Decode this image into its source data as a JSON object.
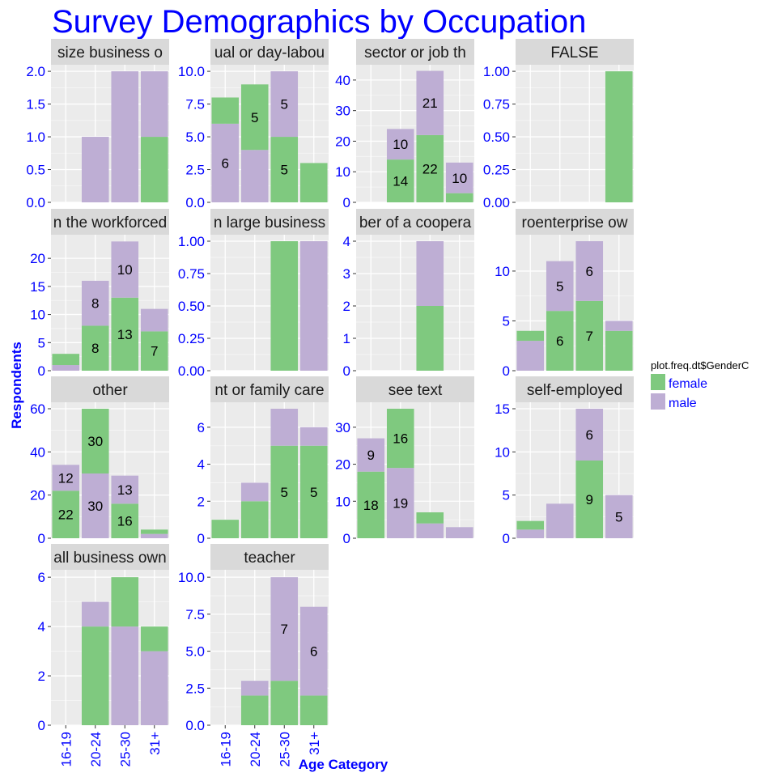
{
  "chart_data": {
    "type": "bar",
    "stacked": true,
    "faceted": true,
    "title": "Survey Demographics by Occupation",
    "xlabel": "Age Category",
    "ylabel": "Respondents",
    "categories": [
      "16-19",
      "20-24",
      "25-30",
      "31+"
    ],
    "legend": {
      "title": "plot.freq.dt$GenderC",
      "position": "right",
      "entries": [
        {
          "name": "female",
          "color": "#7fc97f"
        },
        {
          "name": "male",
          "color": "#beaed4"
        }
      ]
    },
    "grid": true,
    "colors": {
      "title": "#0000ff",
      "axis_text": "#0000ff",
      "panel_bg": "#ebebeb",
      "strip_bg": "#d9d9d9",
      "label_text": "#000000"
    },
    "panels": [
      {
        "strip": "size business o",
        "ylim": [
          0,
          2.1
        ],
        "yticks": [
          "0.0",
          "0.5",
          "1.0",
          "1.5",
          "2.0"
        ],
        "tickvals": [
          0,
          0.5,
          1,
          1.5,
          2
        ],
        "bars": [
          {
            "category": "16-19",
            "segments": []
          },
          {
            "category": "20-24",
            "segments": [
              {
                "gender": "male",
                "value": 1
              }
            ]
          },
          {
            "category": "25-30",
            "segments": [
              {
                "gender": "male",
                "value": 2
              }
            ]
          },
          {
            "category": "31+",
            "segments": [
              {
                "gender": "female",
                "value": 1
              },
              {
                "gender": "male",
                "value": 1
              }
            ]
          }
        ]
      },
      {
        "strip": "ual or day-labou",
        "ylim": [
          0,
          10.5
        ],
        "yticks": [
          "0.0",
          "2.5",
          "5.0",
          "7.5",
          "10.0"
        ],
        "tickvals": [
          0,
          2.5,
          5,
          7.5,
          10
        ],
        "bars": [
          {
            "category": "16-19",
            "segments": [
              {
                "gender": "male",
                "value": 6,
                "label": "6"
              },
              {
                "gender": "female",
                "value": 2
              }
            ]
          },
          {
            "category": "20-24",
            "segments": [
              {
                "gender": "male",
                "value": 4
              },
              {
                "gender": "female",
                "value": 5,
                "label": "5"
              }
            ]
          },
          {
            "category": "25-30",
            "segments": [
              {
                "gender": "female",
                "value": 5,
                "label": "5"
              },
              {
                "gender": "male",
                "value": 5,
                "label": "5"
              }
            ]
          },
          {
            "category": "31+",
            "segments": [
              {
                "gender": "female",
                "value": 3
              }
            ]
          }
        ]
      },
      {
        "strip": "sector or job th",
        "ylim": [
          0,
          45
        ],
        "yticks": [
          "0",
          "10",
          "20",
          "30",
          "40"
        ],
        "tickvals": [
          0,
          10,
          20,
          30,
          40
        ],
        "bars": [
          {
            "category": "16-19",
            "segments": []
          },
          {
            "category": "20-24",
            "segments": [
              {
                "gender": "female",
                "value": 14,
                "label": "14"
              },
              {
                "gender": "male",
                "value": 10,
                "label": "10"
              }
            ]
          },
          {
            "category": "25-30",
            "segments": [
              {
                "gender": "female",
                "value": 22,
                "label": "22"
              },
              {
                "gender": "male",
                "value": 21,
                "label": "21"
              }
            ]
          },
          {
            "category": "31+",
            "segments": [
              {
                "gender": "female",
                "value": 3
              },
              {
                "gender": "male",
                "value": 10,
                "label": "10"
              }
            ]
          }
        ]
      },
      {
        "strip": "FALSE",
        "ylim": [
          0,
          1.05
        ],
        "yticks": [
          "0.00",
          "0.25",
          "0.50",
          "0.75",
          "1.00"
        ],
        "tickvals": [
          0,
          0.25,
          0.5,
          0.75,
          1
        ],
        "bars": [
          {
            "category": "16-19",
            "segments": []
          },
          {
            "category": "20-24",
            "segments": []
          },
          {
            "category": "25-30",
            "segments": []
          },
          {
            "category": "31+",
            "segments": [
              {
                "gender": "female",
                "value": 1
              }
            ]
          }
        ]
      },
      {
        "strip": "n the workforced",
        "ylim": [
          0,
          24.2
        ],
        "yticks": [
          "0",
          "5",
          "10",
          "15",
          "20"
        ],
        "tickvals": [
          0,
          5,
          10,
          15,
          20
        ],
        "bars": [
          {
            "category": "16-19",
            "segments": [
              {
                "gender": "male",
                "value": 1
              },
              {
                "gender": "female",
                "value": 2
              }
            ]
          },
          {
            "category": "20-24",
            "segments": [
              {
                "gender": "female",
                "value": 8,
                "label": "8"
              },
              {
                "gender": "male",
                "value": 8,
                "label": "8"
              }
            ]
          },
          {
            "category": "25-30",
            "segments": [
              {
                "gender": "female",
                "value": 13,
                "label": "13"
              },
              {
                "gender": "male",
                "value": 10,
                "label": "10"
              }
            ]
          },
          {
            "category": "31+",
            "segments": [
              {
                "gender": "female",
                "value": 7,
                "label": "7"
              },
              {
                "gender": "male",
                "value": 4
              }
            ]
          }
        ]
      },
      {
        "strip": "n large business",
        "ylim": [
          0,
          1.05
        ],
        "yticks": [
          "0.00",
          "0.25",
          "0.50",
          "0.75",
          "1.00"
        ],
        "tickvals": [
          0,
          0.25,
          0.5,
          0.75,
          1
        ],
        "bars": [
          {
            "category": "16-19",
            "segments": []
          },
          {
            "category": "20-24",
            "segments": []
          },
          {
            "category": "25-30",
            "segments": [
              {
                "gender": "female",
                "value": 1
              }
            ]
          },
          {
            "category": "31+",
            "segments": [
              {
                "gender": "male",
                "value": 1
              }
            ]
          }
        ]
      },
      {
        "strip": "ber of a coopera",
        "ylim": [
          0,
          4.2
        ],
        "yticks": [
          "0",
          "1",
          "2",
          "3",
          "4"
        ],
        "tickvals": [
          0,
          1,
          2,
          3,
          4
        ],
        "bars": [
          {
            "category": "16-19",
            "segments": []
          },
          {
            "category": "20-24",
            "segments": []
          },
          {
            "category": "25-30",
            "segments": [
              {
                "gender": "female",
                "value": 2
              },
              {
                "gender": "male",
                "value": 2
              }
            ]
          },
          {
            "category": "31+",
            "segments": []
          }
        ]
      },
      {
        "strip": "roenterprise ow",
        "ylim": [
          0,
          13.65
        ],
        "yticks": [
          "0",
          "5",
          "10"
        ],
        "tickvals": [
          0,
          5,
          10
        ],
        "bars": [
          {
            "category": "16-19",
            "segments": [
              {
                "gender": "male",
                "value": 3
              },
              {
                "gender": "female",
                "value": 1
              }
            ]
          },
          {
            "category": "20-24",
            "segments": [
              {
                "gender": "female",
                "value": 6,
                "label": "6"
              },
              {
                "gender": "male",
                "value": 5,
                "label": "5"
              }
            ]
          },
          {
            "category": "25-30",
            "segments": [
              {
                "gender": "female",
                "value": 7,
                "label": "7"
              },
              {
                "gender": "male",
                "value": 6,
                "label": "6"
              }
            ]
          },
          {
            "category": "31+",
            "segments": [
              {
                "gender": "female",
                "value": 4
              },
              {
                "gender": "male",
                "value": 1
              }
            ]
          }
        ]
      },
      {
        "strip": "other",
        "ylim": [
          0,
          63
        ],
        "yticks": [
          "0",
          "20",
          "40",
          "60"
        ],
        "tickvals": [
          0,
          20,
          40,
          60
        ],
        "bars": [
          {
            "category": "16-19",
            "segments": [
              {
                "gender": "female",
                "value": 22,
                "label": "22"
              },
              {
                "gender": "male",
                "value": 12,
                "label": "12"
              }
            ]
          },
          {
            "category": "20-24",
            "segments": [
              {
                "gender": "male",
                "value": 30,
                "label": "30"
              },
              {
                "gender": "female",
                "value": 30,
                "label": "30"
              }
            ]
          },
          {
            "category": "25-30",
            "segments": [
              {
                "gender": "female",
                "value": 16,
                "label": "16"
              },
              {
                "gender": "male",
                "value": 13,
                "label": "13"
              }
            ]
          },
          {
            "category": "31+",
            "segments": [
              {
                "gender": "male",
                "value": 2
              },
              {
                "gender": "female",
                "value": 2
              }
            ]
          }
        ]
      },
      {
        "strip": "nt or family care",
        "ylim": [
          0,
          7.35
        ],
        "yticks": [
          "0",
          "2",
          "4",
          "6"
        ],
        "tickvals": [
          0,
          2,
          4,
          6
        ],
        "bars": [
          {
            "category": "16-19",
            "segments": [
              {
                "gender": "female",
                "value": 1
              }
            ]
          },
          {
            "category": "20-24",
            "segments": [
              {
                "gender": "female",
                "value": 2
              },
              {
                "gender": "male",
                "value": 1
              }
            ]
          },
          {
            "category": "25-30",
            "segments": [
              {
                "gender": "female",
                "value": 5,
                "label": "5"
              },
              {
                "gender": "male",
                "value": 2
              }
            ]
          },
          {
            "category": "31+",
            "segments": [
              {
                "gender": "female",
                "value": 5,
                "label": "5"
              },
              {
                "gender": "male",
                "value": 1
              }
            ]
          }
        ]
      },
      {
        "strip": "see text",
        "ylim": [
          0,
          36.75
        ],
        "yticks": [
          "0",
          "10",
          "20",
          "30"
        ],
        "tickvals": [
          0,
          10,
          20,
          30
        ],
        "bars": [
          {
            "category": "16-19",
            "segments": [
              {
                "gender": "female",
                "value": 18,
                "label": "18"
              },
              {
                "gender": "male",
                "value": 9,
                "label": "9"
              }
            ]
          },
          {
            "category": "20-24",
            "segments": [
              {
                "gender": "male",
                "value": 19,
                "label": "19"
              },
              {
                "gender": "female",
                "value": 16,
                "label": "16"
              }
            ]
          },
          {
            "category": "25-30",
            "segments": [
              {
                "gender": "male",
                "value": 4
              },
              {
                "gender": "female",
                "value": 3
              }
            ]
          },
          {
            "category": "31+",
            "segments": [
              {
                "gender": "male",
                "value": 3
              }
            ]
          }
        ]
      },
      {
        "strip": "self-employed",
        "ylim": [
          0,
          15.75
        ],
        "yticks": [
          "0",
          "5",
          "10",
          "15"
        ],
        "tickvals": [
          0,
          5,
          10,
          15
        ],
        "bars": [
          {
            "category": "16-19",
            "segments": [
              {
                "gender": "male",
                "value": 1
              },
              {
                "gender": "female",
                "value": 1
              }
            ]
          },
          {
            "category": "20-24",
            "segments": [
              {
                "gender": "male",
                "value": 4
              }
            ]
          },
          {
            "category": "25-30",
            "segments": [
              {
                "gender": "female",
                "value": 9,
                "label": "9"
              },
              {
                "gender": "male",
                "value": 6,
                "label": "6"
              }
            ]
          },
          {
            "category": "31+",
            "segments": [
              {
                "gender": "male",
                "value": 5,
                "label": "5"
              }
            ]
          }
        ]
      },
      {
        "strip": "all business own",
        "ylim": [
          0,
          6.3
        ],
        "yticks": [
          "0",
          "2",
          "4",
          "6"
        ],
        "tickvals": [
          0,
          2,
          4,
          6
        ],
        "bars": [
          {
            "category": "16-19",
            "segments": []
          },
          {
            "category": "20-24",
            "segments": [
              {
                "gender": "female",
                "value": 4
              },
              {
                "gender": "male",
                "value": 1
              }
            ]
          },
          {
            "category": "25-30",
            "segments": [
              {
                "gender": "male",
                "value": 4
              },
              {
                "gender": "female",
                "value": 2
              }
            ]
          },
          {
            "category": "31+",
            "segments": [
              {
                "gender": "male",
                "value": 3
              },
              {
                "gender": "female",
                "value": 1
              }
            ]
          }
        ]
      },
      {
        "strip": "teacher",
        "ylim": [
          0,
          10.5
        ],
        "yticks": [
          "0.0",
          "2.5",
          "5.0",
          "7.5",
          "10.0"
        ],
        "tickvals": [
          0,
          2.5,
          5,
          7.5,
          10
        ],
        "bars": [
          {
            "category": "16-19",
            "segments": []
          },
          {
            "category": "20-24",
            "segments": [
              {
                "gender": "female",
                "value": 2
              },
              {
                "gender": "male",
                "value": 1
              }
            ]
          },
          {
            "category": "25-30",
            "segments": [
              {
                "gender": "female",
                "value": 3
              },
              {
                "gender": "male",
                "value": 7,
                "label": "7"
              }
            ]
          },
          {
            "category": "31+",
            "segments": [
              {
                "gender": "female",
                "value": 2
              },
              {
                "gender": "male",
                "value": 6,
                "label": "6"
              }
            ]
          }
        ]
      }
    ]
  }
}
